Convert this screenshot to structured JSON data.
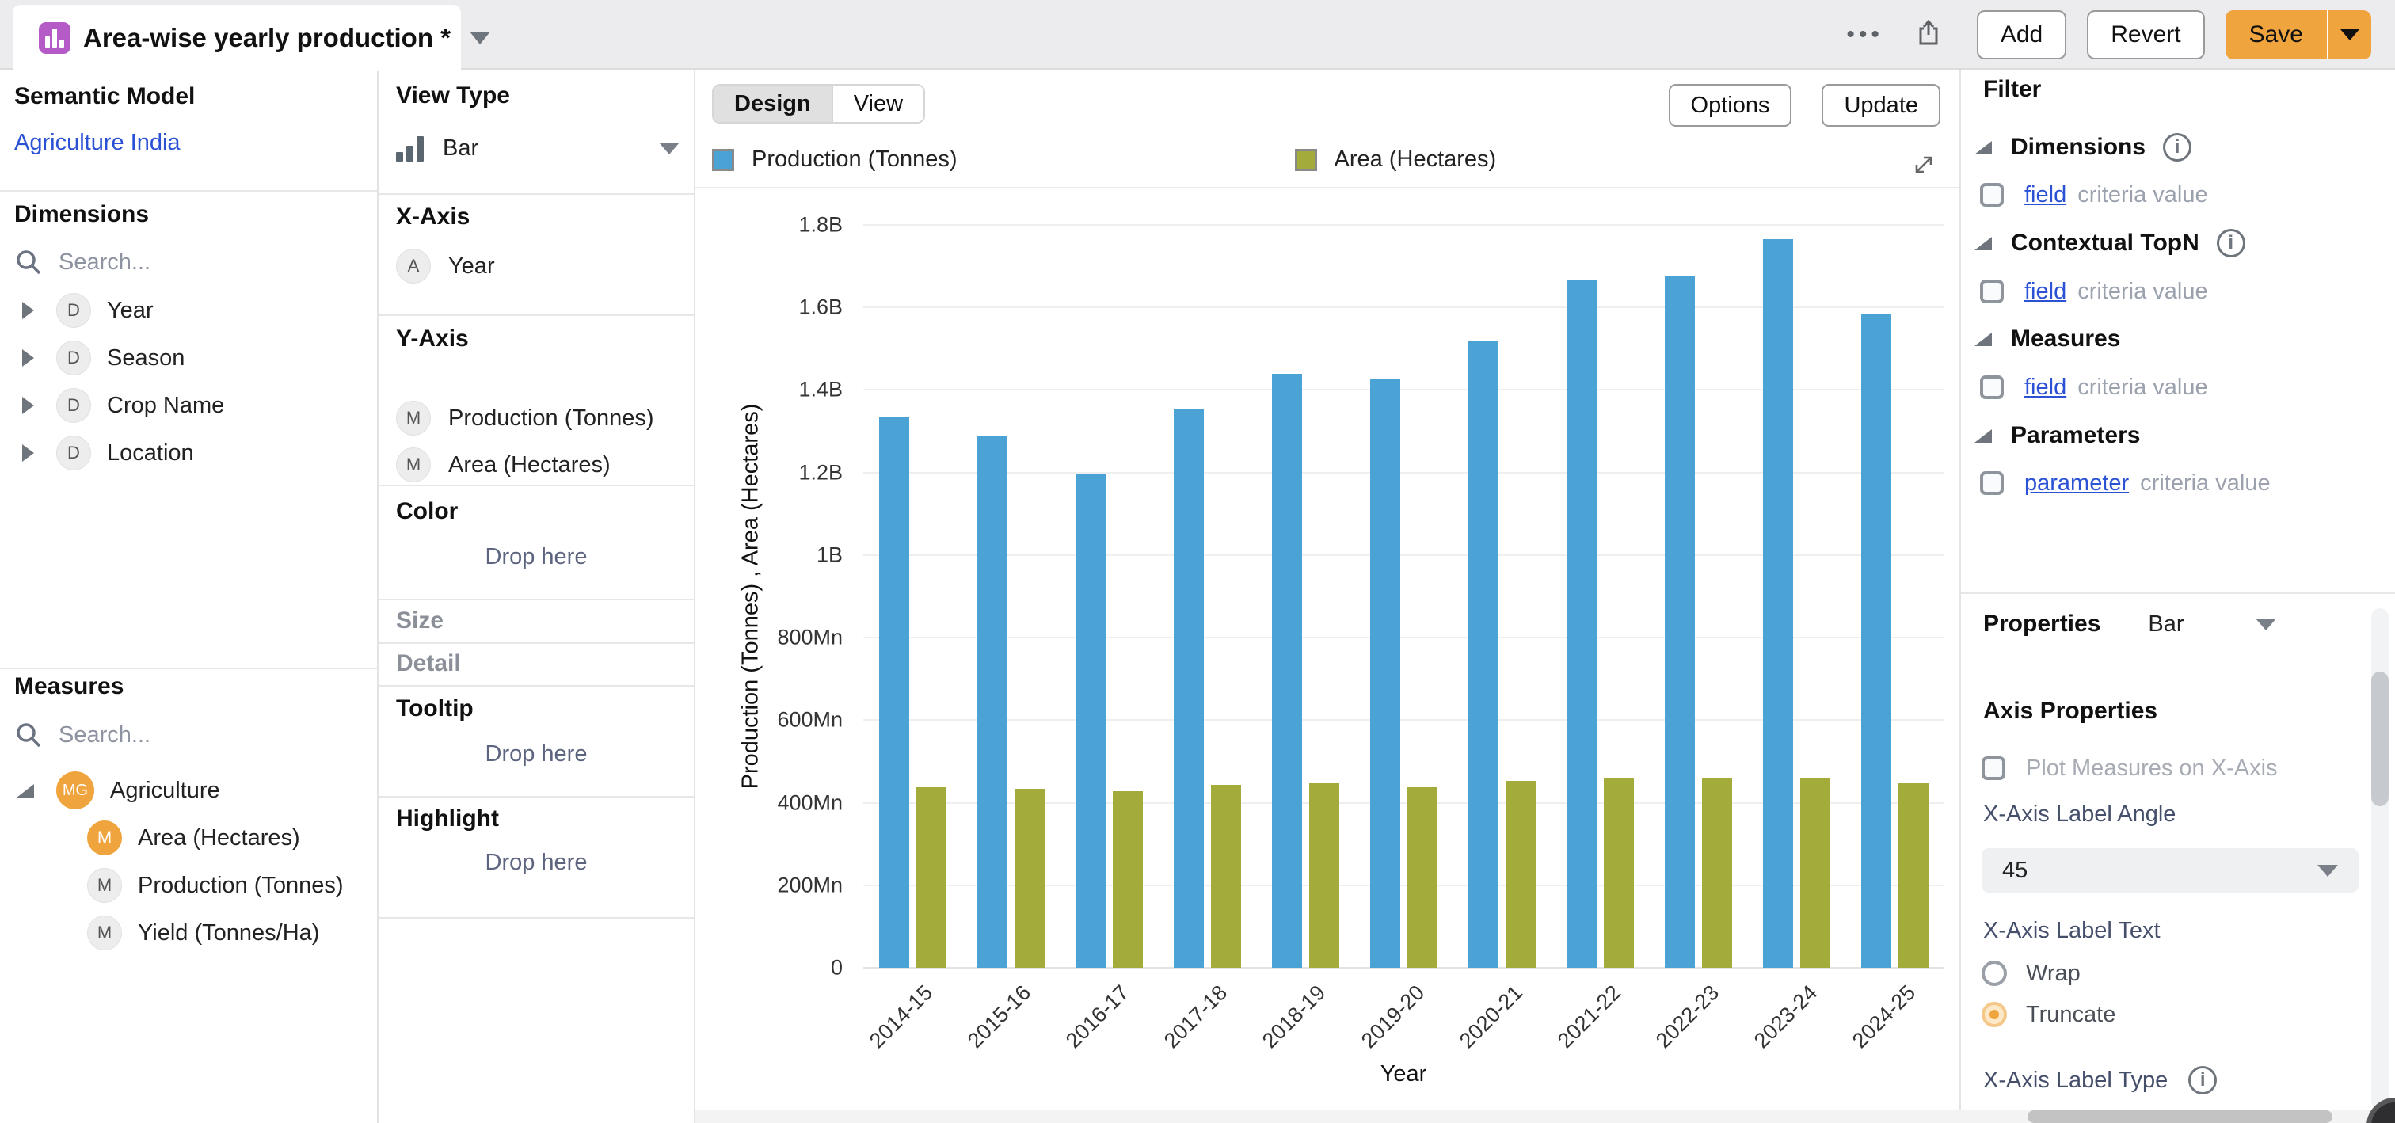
{
  "topbar": {
    "tab": {
      "title": "Area-wise yearly production *"
    },
    "more_icon": "•••",
    "buttons": {
      "add": "Add",
      "revert": "Revert",
      "save": "Save"
    },
    "colors": {
      "save_bg": "#f0a43e",
      "tab_icon_bg": "#b55bc8"
    }
  },
  "left_panel": {
    "semantic_model_title": "Semantic Model",
    "semantic_model_link": "Agriculture India",
    "dimensions": {
      "title": "Dimensions",
      "search_placeholder": "Search...",
      "items": [
        {
          "badge": "D",
          "label": "Year"
        },
        {
          "badge": "D",
          "label": "Season"
        },
        {
          "badge": "D",
          "label": "Crop Name"
        },
        {
          "badge": "D",
          "label": "Location"
        }
      ]
    },
    "measures": {
      "title": "Measures",
      "search_placeholder": "Search...",
      "group": {
        "badge": "MG",
        "label": "Agriculture"
      },
      "items": [
        {
          "badge": "M",
          "label": "Area (Hectares)",
          "highlighted": true
        },
        {
          "badge": "M",
          "label": "Production (Tonnes)",
          "highlighted": false
        },
        {
          "badge": "M",
          "label": "Yield (Tonnes/Ha)",
          "highlighted": false
        }
      ]
    }
  },
  "wells_panel": {
    "view_type": {
      "title": "View Type",
      "value": "Bar"
    },
    "x_axis": {
      "title": "X-Axis",
      "items": [
        {
          "badge": "A",
          "label": "Year"
        }
      ]
    },
    "y_axis": {
      "title": "Y-Axis",
      "items": [
        {
          "badge": "M",
          "label": "Production (Tonnes)"
        },
        {
          "badge": "M",
          "label": "Area (Hectares)"
        }
      ]
    },
    "color": {
      "title": "Color",
      "drop_label": "Drop here"
    },
    "size": {
      "title": "Size"
    },
    "detail": {
      "title": "Detail"
    },
    "tooltip": {
      "title": "Tooltip",
      "drop_label": "Drop here"
    },
    "highlight": {
      "title": "Highlight",
      "drop_label": "Drop here"
    }
  },
  "canvas": {
    "mode_tabs": [
      {
        "label": "Design",
        "active": true
      },
      {
        "label": "View",
        "active": false
      }
    ],
    "options_button": "Options",
    "update_button": "Update",
    "legend": [
      {
        "label": "Production (Tonnes)",
        "color": "#4ba3d5"
      },
      {
        "label": "Area (Hectares)",
        "color": "#a3ab3a"
      }
    ]
  },
  "chart_data": {
    "type": "bar",
    "title": "",
    "categories": [
      "2014-15",
      "2015-16",
      "2016-17",
      "2017-18",
      "2018-19",
      "2019-20",
      "2020-21",
      "2021-22",
      "2022-23",
      "2023-24",
      "2024-25"
    ],
    "series": [
      {
        "name": "Production (Tonnes)",
        "color": "#4ba3d5",
        "values_mn": [
          1335,
          1290,
          1195,
          1355,
          1440,
          1428,
          1520,
          1668,
          1678,
          1765,
          1585
        ]
      },
      {
        "name": "Area (Hectares)",
        "color": "#a3ab3a",
        "values_mn": [
          437,
          433,
          428,
          443,
          447,
          438,
          453,
          458,
          458,
          461,
          448
        ]
      }
    ],
    "xlabel": "Year",
    "ylabel": "Production (Tonnes) , Area (Hectares)",
    "ylim_mn": [
      0,
      1800
    ],
    "ytick_step_mn": 200,
    "ytick_labels": [
      "0",
      "200Mn",
      "400Mn",
      "600Mn",
      "800Mn",
      "1B",
      "1.2B",
      "1.4B",
      "1.6B",
      "1.8B"
    ],
    "grid": true,
    "legend_position": "top-left",
    "x_label_angle": 45
  },
  "filter_panel": {
    "title": "Filter",
    "sections": [
      {
        "label": "Dimensions",
        "info": true,
        "row_link": "field",
        "row_text": "criteria value"
      },
      {
        "label": "Contextual TopN",
        "info": true,
        "row_link": "field",
        "row_text": "criteria value"
      },
      {
        "label": "Measures",
        "info": false,
        "row_link": "field",
        "row_text": "criteria value"
      },
      {
        "label": "Parameters",
        "info": false,
        "row_link": "parameter",
        "row_text": "criteria value"
      }
    ]
  },
  "properties_panel": {
    "title": "Properties",
    "selected_type": "Bar",
    "axis_properties_title": "Axis Properties",
    "plot_measures_label": "Plot Measures on X-Axis",
    "x_axis_label_angle": {
      "label": "X-Axis Label Angle",
      "value": "45"
    },
    "x_axis_label_text": {
      "label": "X-Axis Label Text",
      "options": [
        {
          "label": "Wrap",
          "selected": false
        },
        {
          "label": "Truncate",
          "selected": true
        }
      ]
    },
    "x_axis_label_type": {
      "label": "X-Axis Label Type"
    }
  }
}
